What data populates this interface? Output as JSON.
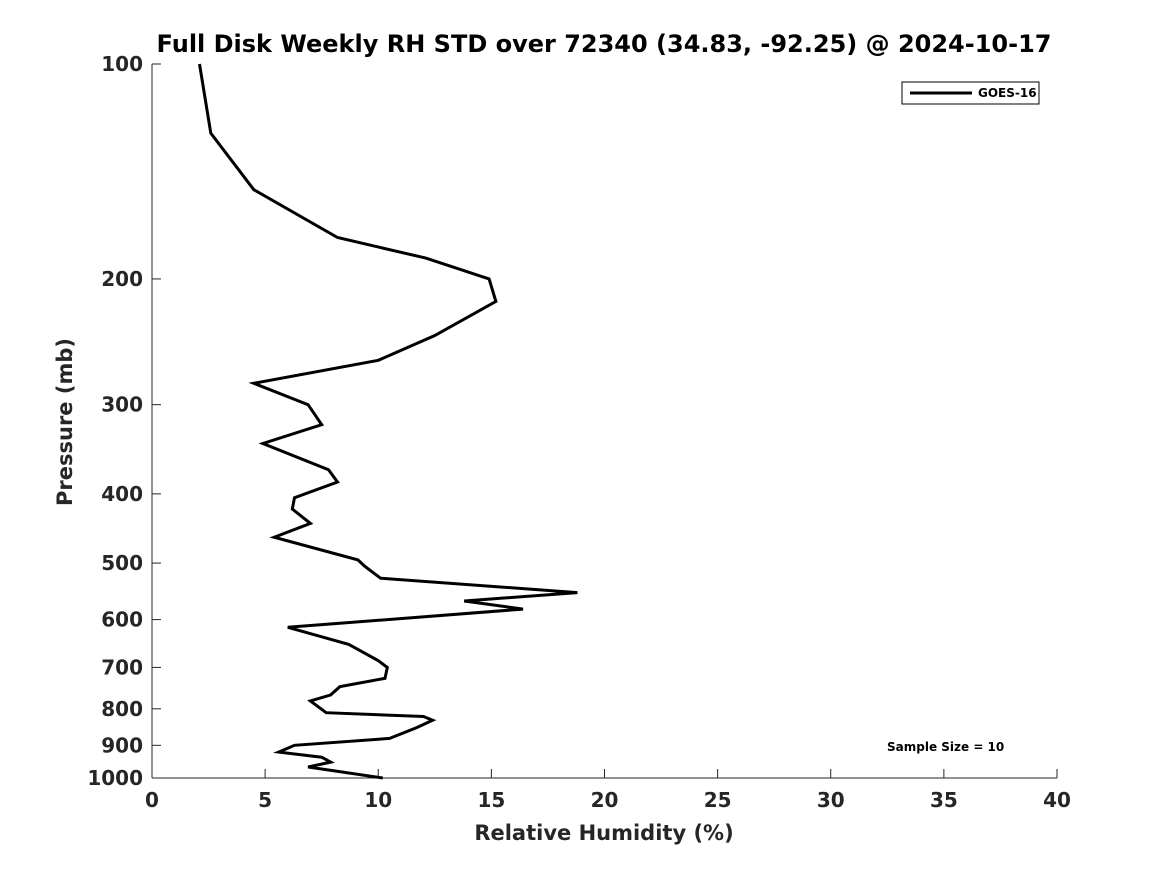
{
  "chart_data": {
    "type": "line",
    "title": "Full Disk Weekly RH STD over 72340 (34.83, -92.25) @ 2024-10-17",
    "xlabel": "Relative Humidity (%)",
    "ylabel": "Pressure (mb)",
    "xlim": [
      0,
      40
    ],
    "ylim": [
      100,
      1000
    ],
    "y_scale": "log",
    "y_inverted": true,
    "x_ticks": [
      0,
      5,
      10,
      15,
      20,
      25,
      30,
      35,
      40
    ],
    "y_ticks": [
      100,
      200,
      300,
      400,
      500,
      600,
      700,
      800,
      900,
      1000
    ],
    "grid": false,
    "legend_position": "top-right",
    "line_color": "#000000",
    "annotation": "Sample Size = 10",
    "series": [
      {
        "name": "GOES-16",
        "points": [
          [
            2.1,
            100
          ],
          [
            2.6,
            125
          ],
          [
            4.5,
            150
          ],
          [
            8.2,
            175
          ],
          [
            12.1,
            187
          ],
          [
            14.9,
            200
          ],
          [
            15.2,
            215
          ],
          [
            12.5,
            240
          ],
          [
            10.0,
            260
          ],
          [
            4.5,
            280
          ],
          [
            6.9,
            300
          ],
          [
            7.5,
            320
          ],
          [
            4.9,
            340
          ],
          [
            7.8,
            370
          ],
          [
            8.2,
            385
          ],
          [
            6.3,
            405
          ],
          [
            6.2,
            420
          ],
          [
            7.0,
            440
          ],
          [
            5.4,
            460
          ],
          [
            9.1,
            495
          ],
          [
            9.4,
            505
          ],
          [
            10.1,
            525
          ],
          [
            18.8,
            550
          ],
          [
            13.8,
            565
          ],
          [
            16.4,
            580
          ],
          [
            6.0,
            615
          ],
          [
            8.7,
            650
          ],
          [
            10.0,
            685
          ],
          [
            10.4,
            700
          ],
          [
            10.3,
            725
          ],
          [
            8.3,
            745
          ],
          [
            7.9,
            765
          ],
          [
            7.0,
            780
          ],
          [
            7.7,
            810
          ],
          [
            12.0,
            820
          ],
          [
            12.4,
            830
          ],
          [
            11.7,
            850
          ],
          [
            10.5,
            880
          ],
          [
            6.3,
            900
          ],
          [
            5.6,
            920
          ],
          [
            7.5,
            935
          ],
          [
            7.9,
            950
          ],
          [
            6.9,
            965
          ],
          [
            10.2,
            1000
          ]
        ]
      }
    ]
  }
}
